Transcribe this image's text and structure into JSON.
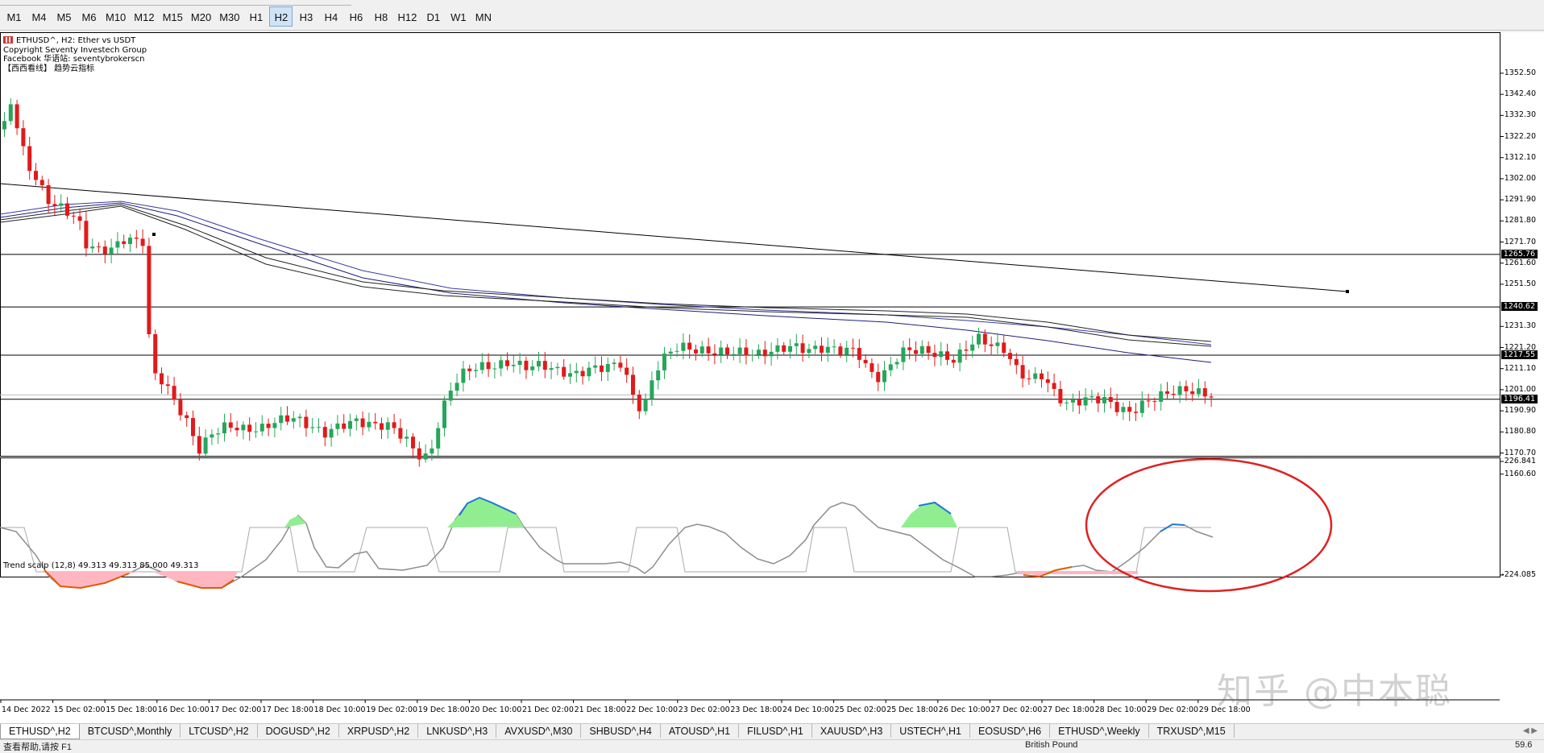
{
  "timeframes": [
    "M1",
    "M4",
    "M5",
    "M6",
    "M10",
    "M12",
    "M15",
    "M20",
    "M30",
    "H1",
    "H2",
    "H3",
    "H4",
    "H6",
    "H8",
    "H12",
    "D1",
    "W1",
    "MN"
  ],
  "active_timeframe": "H2",
  "chart": {
    "symbol_line": "ETHUSD^, H2:  Ether vs USDT",
    "info_lines": [
      "Copyright Seventy Investech Group",
      "Facebook 华语站: seventybrokerscn",
      "【西西看线】 趋势云指标"
    ],
    "indicator_label": "Trend scalp (12,8) 49.313 49.313 85.000 49.313",
    "bull_color": "#26a65b",
    "bear_color": "#e11a1a"
  },
  "price_axis": [
    "1352.50",
    "1342.40",
    "1332.30",
    "1322.20",
    "1312.10",
    "1302.00",
    "1291.90",
    "1281.80",
    "1271.70",
    "1261.60",
    "1251.50",
    "1231.30",
    "1221.20",
    "1211.10",
    "1201.00",
    "1190.90",
    "1180.80",
    "1170.70",
    "1160.60"
  ],
  "price_boxes": [
    "1265.76",
    "1240.62",
    "1217.55",
    "1196.41"
  ],
  "indicator_axis": [
    "226.841",
    "-224.085"
  ],
  "time_axis": [
    "14 Dec 2022",
    "15 Dec 02:00",
    "15 Dec 18:00",
    "16 Dec 10:00",
    "17 Dec 02:00",
    "17 Dec 18:00",
    "18 Dec 10:00",
    "19 Dec 02:00",
    "19 Dec 18:00",
    "20 Dec 10:00",
    "21 Dec 02:00",
    "21 Dec 18:00",
    "22 Dec 10:00",
    "23 Dec 02:00",
    "23 Dec 18:00",
    "24 Dec 10:00",
    "25 Dec 02:00",
    "25 Dec 18:00",
    "26 Dec 10:00",
    "27 Dec 02:00",
    "27 Dec 18:00",
    "28 Dec 10:00",
    "29 Dec 02:00",
    "29 Dec 18:00"
  ],
  "watermark": "知乎 @中本聪",
  "tabs": [
    "ETHUSD^,H2",
    "BTCUSD^,Monthly",
    "LTCUSD^,H2",
    "DOGUSD^,H2",
    "XRPUSD^,H2",
    "LNKUSD^,H3",
    "AVXUSD^,M30",
    "SHBUSD^,H4",
    "ATOUSD^,H1",
    "FILUSD^,H1",
    "XAUUSD^,H3",
    "USTECH^,H1",
    "EOSUSD^,H6",
    "ETHUSD^,Weekly",
    "TRXUSD^,M15"
  ],
  "active_tab": "ETHUSD^,H2",
  "status": {
    "left": "查看帮助,请按 F1",
    "middle": "British Pound",
    "right": "59.6"
  },
  "icons": {
    "symbol": "chart-icon",
    "scroll": "tab-scroll-arrows-icon"
  }
}
